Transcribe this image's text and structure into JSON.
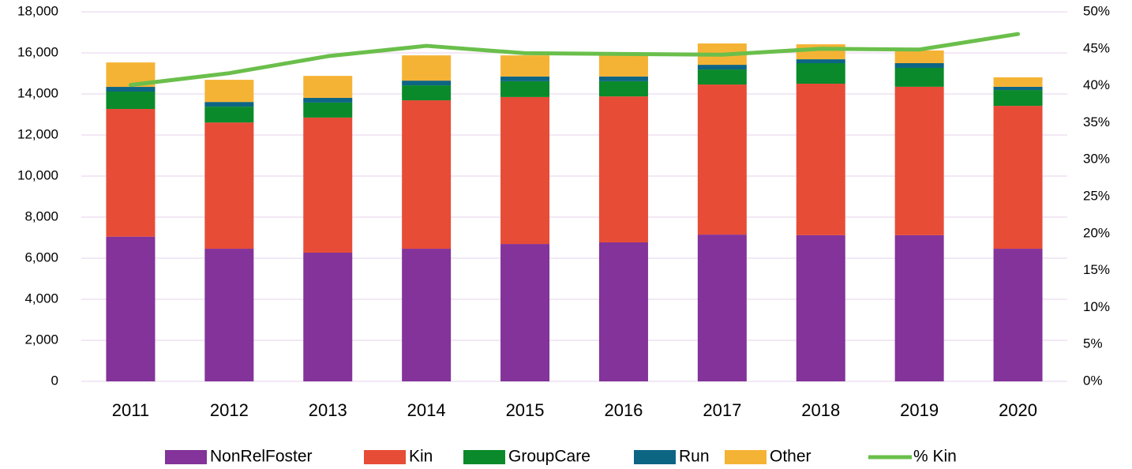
{
  "chart_data": {
    "type": "bar",
    "categories": [
      "2011",
      "2012",
      "2013",
      "2014",
      "2015",
      "2016",
      "2017",
      "2018",
      "2019",
      "2020"
    ],
    "stacked": true,
    "series": [
      {
        "name": "NonRelFoster",
        "color": "#833399",
        "values": [
          7050,
          6460,
          6270,
          6460,
          6690,
          6770,
          7150,
          7120,
          7120,
          6460
        ]
      },
      {
        "name": "Kin",
        "color": "#e74c37",
        "values": [
          6220,
          6150,
          6580,
          7230,
          7160,
          7110,
          7310,
          7380,
          7230,
          6960
        ]
      },
      {
        "name": "GroupCare",
        "color": "#0a8a2a",
        "values": [
          845,
          770,
          730,
          730,
          770,
          740,
          730,
          1000,
          920,
          770
        ]
      },
      {
        "name": "Run",
        "color": "#0d6584",
        "values": [
          230,
          230,
          230,
          230,
          230,
          230,
          230,
          190,
          230,
          160
        ]
      },
      {
        "name": "Other",
        "color": "#f5b335",
        "values": [
          1190,
          1080,
          1070,
          1230,
          1030,
          1030,
          1040,
          730,
          620,
          460
        ]
      },
      {
        "name": "% Kin",
        "color": "#6abf4b",
        "type": "line",
        "axis": "y2",
        "values": [
          40.1,
          41.7,
          44.0,
          45.4,
          44.4,
          44.3,
          44.2,
          45.0,
          44.9,
          47.0
        ]
      }
    ],
    "ylim": [
      0,
      18000
    ],
    "yticks": [
      {
        "value": 0,
        "label": "0"
      },
      {
        "value": 2000,
        "label": "2,000"
      },
      {
        "value": 4000,
        "label": "4,000"
      },
      {
        "value": 6000,
        "label": "6,000"
      },
      {
        "value": 8000,
        "label": "8,000"
      },
      {
        "value": 10000,
        "label": "10,000"
      },
      {
        "value": 12000,
        "label": "12,000"
      },
      {
        "value": 14000,
        "label": "14,000"
      },
      {
        "value": 16000,
        "label": "16,000"
      },
      {
        "value": 18000,
        "label": "18,000"
      }
    ],
    "y2lim": [
      0,
      50
    ],
    "y2ticks": [
      {
        "value": 0,
        "label": "0%"
      },
      {
        "value": 5,
        "label": "5%"
      },
      {
        "value": 10,
        "label": "10%"
      },
      {
        "value": 15,
        "label": "15%"
      },
      {
        "value": 20,
        "label": "20%"
      },
      {
        "value": 25,
        "label": "25%"
      },
      {
        "value": 30,
        "label": "30%"
      },
      {
        "value": 35,
        "label": "35%"
      },
      {
        "value": 40,
        "label": "40%"
      },
      {
        "value": 45,
        "label": "45%"
      },
      {
        "value": 50,
        "label": "50%"
      }
    ],
    "grid": true,
    "grid_color": "#ead9ef",
    "legend": "bottom"
  }
}
